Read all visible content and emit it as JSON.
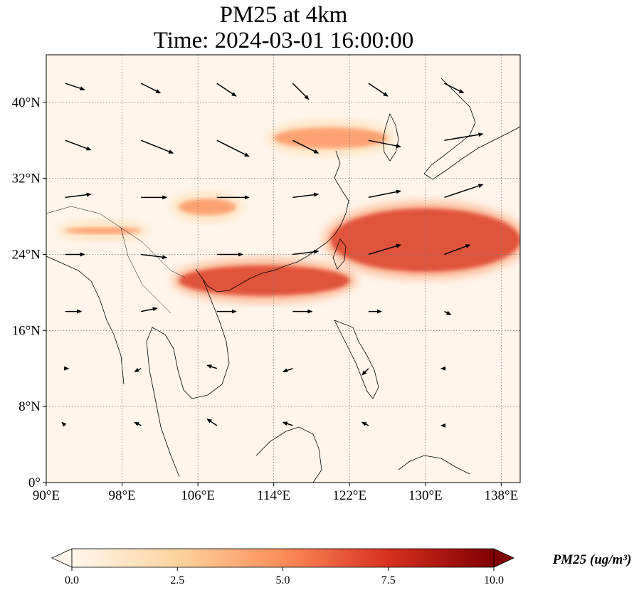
{
  "title": {
    "line1": "PM25 at 4km",
    "line2": "Time: 2024-03-01 16:00:00"
  },
  "map": {
    "variable": "PM25",
    "extent": {
      "lon_min": 90,
      "lon_max": 140,
      "lat_min": 0,
      "lat_max": 45
    },
    "x_ticks": [
      "90°E",
      "98°E",
      "106°E",
      "114°E",
      "122°E",
      "130°E",
      "138°E"
    ],
    "x_tick_values": [
      90,
      98,
      106,
      114,
      122,
      130,
      138
    ],
    "y_ticks": [
      "0°",
      "8°N",
      "16°N",
      "24°N",
      "32°N",
      "40°N"
    ],
    "y_tick_values": [
      0,
      8,
      16,
      24,
      32,
      40
    ],
    "grid": "dotted gray gridlines",
    "colors": {
      "background": "#fff5eb",
      "low": "#fde2c4",
      "mid": "#fdae6b",
      "high": "#e6550d",
      "max": "#a63603",
      "coastline": "#000000",
      "arrows": "#000000"
    }
  },
  "colorbar": {
    "label": "PM25 (ug/m³)",
    "ticks": [
      "0.0",
      "2.5",
      "5.0",
      "7.5",
      "10.0"
    ],
    "tick_values": [
      0,
      2.5,
      5,
      7.5,
      10
    ],
    "range": [
      0,
      10
    ],
    "colormap": "OrRd",
    "extend": "both",
    "stops": [
      "#fff7ec",
      "#fdd49e",
      "#fc8d59",
      "#d7301f",
      "#7f0000"
    ]
  },
  "chart_data": {
    "type": "heatmap",
    "title": "PM25 at 4km",
    "subtitle": "Time: 2024-03-01 16:00:00",
    "xlabel": "",
    "ylabel": "",
    "xlim": [
      90,
      140
    ],
    "ylim": [
      0,
      45
    ],
    "plumes": [
      {
        "lon": [
          114,
          126
        ],
        "lat": [
          35,
          37.5
        ],
        "level": 6
      },
      {
        "lon": [
          104,
          110
        ],
        "lat": [
          28,
          30
        ],
        "level": 6
      },
      {
        "lon": [
          92,
          100
        ],
        "lat": [
          26,
          27
        ],
        "level": 5
      },
      {
        "lon": [
          104,
          122
        ],
        "lat": [
          19.5,
          23
        ],
        "level": 7
      },
      {
        "lon": [
          120,
          140
        ],
        "lat": [
          22,
          29
        ],
        "level": 7.5
      }
    ],
    "wind": [
      {
        "lon": 92,
        "lat": 42,
        "u": 3,
        "v": -1
      },
      {
        "lon": 100,
        "lat": 42,
        "u": 3,
        "v": -1.5
      },
      {
        "lon": 108,
        "lat": 42,
        "u": 3,
        "v": -2
      },
      {
        "lon": 116,
        "lat": 42,
        "u": 2.5,
        "v": -2.5
      },
      {
        "lon": 124,
        "lat": 42,
        "u": 3,
        "v": -2
      },
      {
        "lon": 132,
        "lat": 42,
        "u": 3,
        "v": -1.5
      },
      {
        "lon": 92,
        "lat": 36,
        "u": 4,
        "v": -1.5
      },
      {
        "lon": 100,
        "lat": 36,
        "u": 5,
        "v": -2
      },
      {
        "lon": 108,
        "lat": 36,
        "u": 5,
        "v": -2.5
      },
      {
        "lon": 116,
        "lat": 36,
        "u": 4,
        "v": -2
      },
      {
        "lon": 124,
        "lat": 36,
        "u": 5,
        "v": -1
      },
      {
        "lon": 132,
        "lat": 36,
        "u": 6,
        "v": 1
      },
      {
        "lon": 92,
        "lat": 30,
        "u": 4,
        "v": 0.5
      },
      {
        "lon": 100,
        "lat": 30,
        "u": 4,
        "v": 0
      },
      {
        "lon": 108,
        "lat": 30,
        "u": 5,
        "v": 0
      },
      {
        "lon": 116,
        "lat": 30,
        "u": 4,
        "v": 0.5
      },
      {
        "lon": 124,
        "lat": 30,
        "u": 5,
        "v": 1
      },
      {
        "lon": 132,
        "lat": 30,
        "u": 6,
        "v": 2
      },
      {
        "lon": 92,
        "lat": 24,
        "u": 3,
        "v": 0
      },
      {
        "lon": 100,
        "lat": 24,
        "u": 4,
        "v": -0.5
      },
      {
        "lon": 108,
        "lat": 24,
        "u": 4,
        "v": 0
      },
      {
        "lon": 116,
        "lat": 24,
        "u": 4,
        "v": 0.5
      },
      {
        "lon": 124,
        "lat": 24,
        "u": 5,
        "v": 1.5
      },
      {
        "lon": 132,
        "lat": 24,
        "u": 4,
        "v": 1.5
      },
      {
        "lon": 92,
        "lat": 18,
        "u": 2.5,
        "v": 0
      },
      {
        "lon": 100,
        "lat": 18,
        "u": 2.5,
        "v": 0.5
      },
      {
        "lon": 108,
        "lat": 18,
        "u": 3,
        "v": 0
      },
      {
        "lon": 116,
        "lat": 18,
        "u": 3,
        "v": 0
      },
      {
        "lon": 124,
        "lat": 18,
        "u": 2,
        "v": 0
      },
      {
        "lon": 132,
        "lat": 18,
        "u": 1,
        "v": -0.5
      },
      {
        "lon": 92,
        "lat": 12,
        "u": 0.5,
        "v": 0
      },
      {
        "lon": 100,
        "lat": 12,
        "u": -1,
        "v": -0.5
      },
      {
        "lon": 108,
        "lat": 12,
        "u": -1.5,
        "v": 0.5
      },
      {
        "lon": 116,
        "lat": 12,
        "u": -1.5,
        "v": -0.5
      },
      {
        "lon": 124,
        "lat": 12,
        "u": -1,
        "v": -1
      },
      {
        "lon": 132,
        "lat": 12,
        "u": -0.5,
        "v": 0
      },
      {
        "lon": 92,
        "lat": 6,
        "u": -0.5,
        "v": 0.5
      },
      {
        "lon": 100,
        "lat": 6,
        "u": -1,
        "v": 0.5
      },
      {
        "lon": 108,
        "lat": 6,
        "u": -1.5,
        "v": 1
      },
      {
        "lon": 116,
        "lat": 6,
        "u": -1.5,
        "v": 0.5
      },
      {
        "lon": 124,
        "lat": 6,
        "u": -1,
        "v": 0.5
      },
      {
        "lon": 132,
        "lat": 6,
        "u": -0.5,
        "v": 0
      }
    ]
  }
}
